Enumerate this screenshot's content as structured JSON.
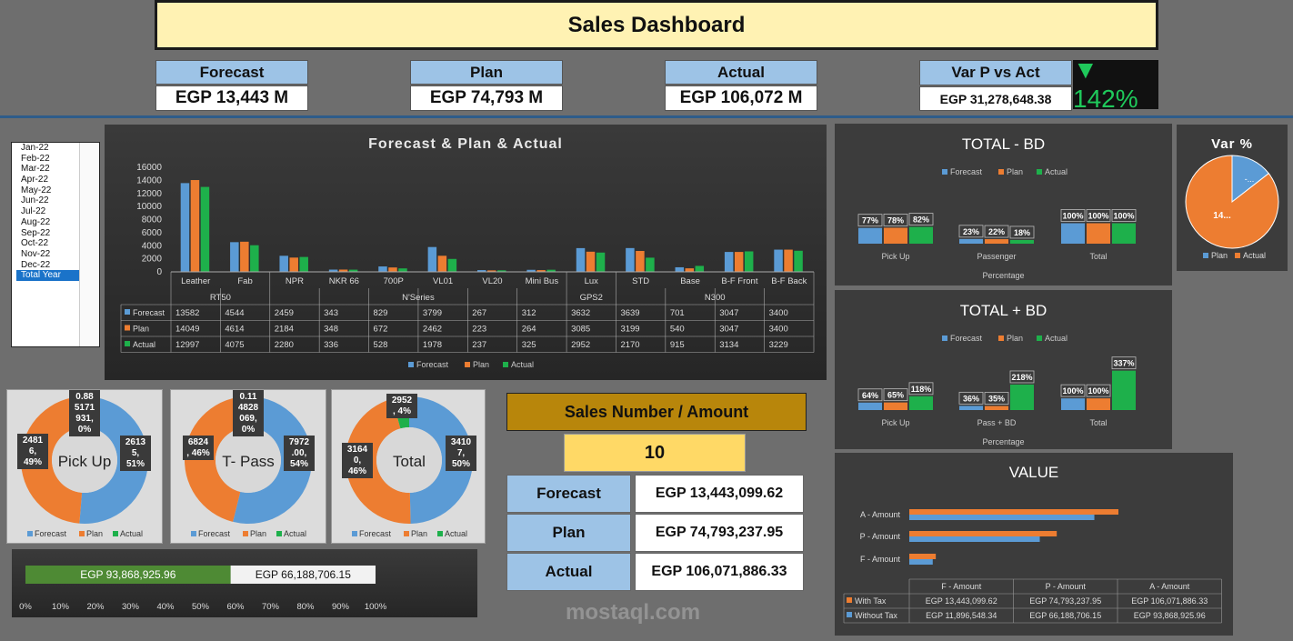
{
  "title": "Sales Dashboard",
  "kpis": {
    "forecast_label": "Forecast",
    "forecast_value": "EGP 13,443 M",
    "plan_label": "Plan",
    "plan_value": "EGP 74,793 M",
    "actual_label": "Actual",
    "actual_value": "EGP 106,072 M",
    "var_label": "Var P vs Act",
    "var_value": "EGP 31,278,648.38",
    "var_pct": "▼ 142%"
  },
  "months": [
    "Jan-22",
    "Feb-22",
    "Mar-22",
    "Apr-22",
    "May-22",
    "Jun-22",
    "Jul-22",
    "Aug-22",
    "Sep-22",
    "Oct-22",
    "Nov-22",
    "Dec-22",
    "Total Year"
  ],
  "selected_month": "Total Year",
  "colors": {
    "forecast": "#5b9bd5",
    "plan": "#ed7d31",
    "actual": "#1eb04b"
  },
  "legend": {
    "forecast": "Forecast",
    "plan": "Plan",
    "actual": "Actual"
  },
  "chart_data": [
    {
      "type": "bar",
      "title": "Forecast & Plan & Actual",
      "ylim": [
        0,
        16000
      ],
      "yticks": [
        0,
        2000,
        4000,
        6000,
        8000,
        10000,
        12000,
        14000,
        16000
      ],
      "categories": [
        "Leather",
        "Fab",
        "NPR",
        "NKR 66",
        "700P",
        "VL01",
        "VL20",
        "Mini Bus",
        "Lux",
        "STD",
        "Base",
        "B-F Front",
        "B-F Back"
      ],
      "groups": [
        {
          "name": "RT50",
          "start": 0,
          "end": 1
        },
        {
          "name": "N'Series",
          "start": 2,
          "end": 7
        },
        {
          "name": "GPS2",
          "start": 8,
          "end": 8
        },
        {
          "name": "N300",
          "start": 9,
          "end": 12
        }
      ],
      "series": [
        {
          "name": "Forecast",
          "values": [
            13582,
            4544,
            2459,
            343,
            829,
            3799,
            267,
            312,
            3632,
            3639,
            701,
            3047,
            3400
          ]
        },
        {
          "name": "Plan",
          "values": [
            14049,
            4614,
            2184,
            348,
            672,
            2462,
            223,
            264,
            3085,
            3199,
            540,
            3047,
            3400
          ]
        },
        {
          "name": "Actual",
          "values": [
            12997,
            4075,
            2280,
            336,
            528,
            1978,
            237,
            325,
            2952,
            2170,
            915,
            3134,
            3229
          ]
        }
      ]
    },
    {
      "type": "bar",
      "title": "TOTAL - BD",
      "xlabel": "Percentage",
      "categories": [
        "Pick Up",
        "Passenger",
        "Total"
      ],
      "series": [
        {
          "name": "Forecast",
          "values": [
            77,
            23,
            100
          ]
        },
        {
          "name": "Plan",
          "values": [
            78,
            22,
            100
          ]
        },
        {
          "name": "Actual",
          "values": [
            82,
            18,
            100
          ]
        }
      ]
    },
    {
      "type": "bar",
      "title": "TOTAL + BD",
      "xlabel": "Percentage",
      "categories": [
        "Pick Up",
        "Pass + BD",
        "Total"
      ],
      "series": [
        {
          "name": "Forecast",
          "values": [
            64,
            36,
            100
          ]
        },
        {
          "name": "Plan",
          "values": [
            65,
            35,
            100
          ]
        },
        {
          "name": "Actual",
          "values": [
            118,
            218,
            337
          ]
        }
      ]
    },
    {
      "type": "pie",
      "title": "Var %",
      "labels": [
        "Plan",
        "Actual"
      ],
      "values": [
        14.5,
        85.5
      ],
      "data_labels": [
        "-...",
        "14..."
      ]
    },
    {
      "type": "pie",
      "title": "Pick Up",
      "labels": [
        "Forecast",
        "Plan",
        "Actual"
      ],
      "values": [
        26135,
        24816,
        0.885
      ],
      "data_labels": [
        "2613\n5,\n51%",
        "2481\n6,\n49%",
        "0.88\n5171\n931,\n0%"
      ]
    },
    {
      "type": "pie",
      "title": "T- Pass",
      "labels": [
        "Forecast",
        "Plan",
        "Actual"
      ],
      "values": [
        7972,
        6824,
        0.11
      ],
      "data_labels": [
        "7972\n.00,\n54%",
        "6824\n, 46%",
        "0.11\n4828\n069,\n0%"
      ]
    },
    {
      "type": "pie",
      "title": "Total",
      "labels": [
        "Forecast",
        "Plan",
        "Actual"
      ],
      "values": [
        34107,
        31640,
        2952
      ],
      "data_labels": [
        "3410\n7,\n50%",
        "3164\n0,\n46%",
        "2952\n, 4%"
      ]
    },
    {
      "type": "bar",
      "title": "",
      "orientation": "horizontal-stacked-100",
      "segments": [
        {
          "label": "EGP 93,868,925.96",
          "value": 58.6
        },
        {
          "label": "EGP 66,188,706.15",
          "value": 41.4
        }
      ],
      "xticks": [
        "0%",
        "10%",
        "20%",
        "30%",
        "40%",
        "50%",
        "60%",
        "70%",
        "80%",
        "90%",
        "100%"
      ]
    },
    {
      "type": "bar",
      "title": "VALUE",
      "orientation": "horizontal",
      "categories": [
        "F - Amount",
        "P - Amount",
        "A - Amount"
      ],
      "series": [
        {
          "name": "With Tax",
          "values": [
            13443099.62,
            74793237.95,
            106071886.33
          ],
          "labels": [
            "EGP 13,443,099.62",
            "EGP 74,793,237.95",
            "EGP 106,071,886.33"
          ]
        },
        {
          "name": "Without Tax",
          "values": [
            11896548.34,
            66188706.15,
            93868925.96
          ],
          "labels": [
            "EGP 11,896,548.34",
            "EGP 66,188,706.15",
            "EGP 93,868,925.96"
          ]
        }
      ]
    }
  ],
  "sales_number": {
    "header": "Sales Number / Amount",
    "count": "10",
    "rows": [
      {
        "label": "Forecast",
        "value": "EGP 13,443,099.62"
      },
      {
        "label": "Plan",
        "value": "EGP 74,793,237.95"
      },
      {
        "label": "Actual",
        "value": "EGP 106,071,886.33"
      }
    ]
  },
  "watermark": "mostaql.com"
}
